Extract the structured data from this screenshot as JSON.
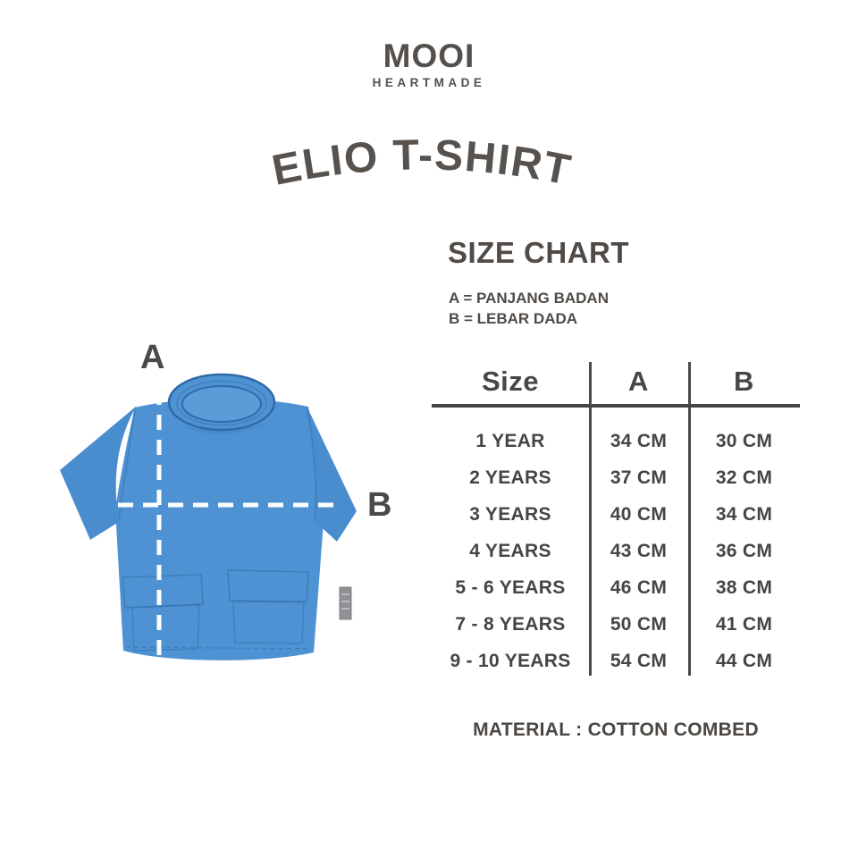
{
  "brand": {
    "name": "MOOI",
    "tagline": "HEARTMADE"
  },
  "product_title": "ELIO T-SHIRT",
  "diagram": {
    "label_a": "A",
    "label_b": "B"
  },
  "chart_data": {
    "type": "table",
    "title": "SIZE CHART",
    "notes": [
      "A = PANJANG BADAN",
      "B = LEBAR DADA"
    ],
    "columns": [
      "Size",
      "A",
      "B"
    ],
    "rows": [
      [
        "1 YEAR",
        "34 CM",
        "30 CM"
      ],
      [
        "2 YEARS",
        "37 CM",
        "32 CM"
      ],
      [
        "3 YEARS",
        "40 CM",
        "34 CM"
      ],
      [
        "4 YEARS",
        "43 CM",
        "36 CM"
      ],
      [
        "5 - 6 YEARS",
        "46 CM",
        "38 CM"
      ],
      [
        "7 - 8 YEARS",
        "50 CM",
        "41 CM"
      ],
      [
        "9 - 10 YEARS",
        "54 CM",
        "44 CM"
      ]
    ]
  },
  "material_note": "MATERIAL : COTTON COMBED",
  "colors": {
    "background": "#FFFFFF",
    "text_dark": "#55504B",
    "table_text": "#454545",
    "table_lines": "#4A4A4A",
    "shirt_blue": "#4E92D3",
    "shirt_blue_shade": "#4A8DCF",
    "shirt_outline": "#2E6BA6",
    "dash_line": "#FFFFFF",
    "tag_gray": "#8F9196"
  }
}
